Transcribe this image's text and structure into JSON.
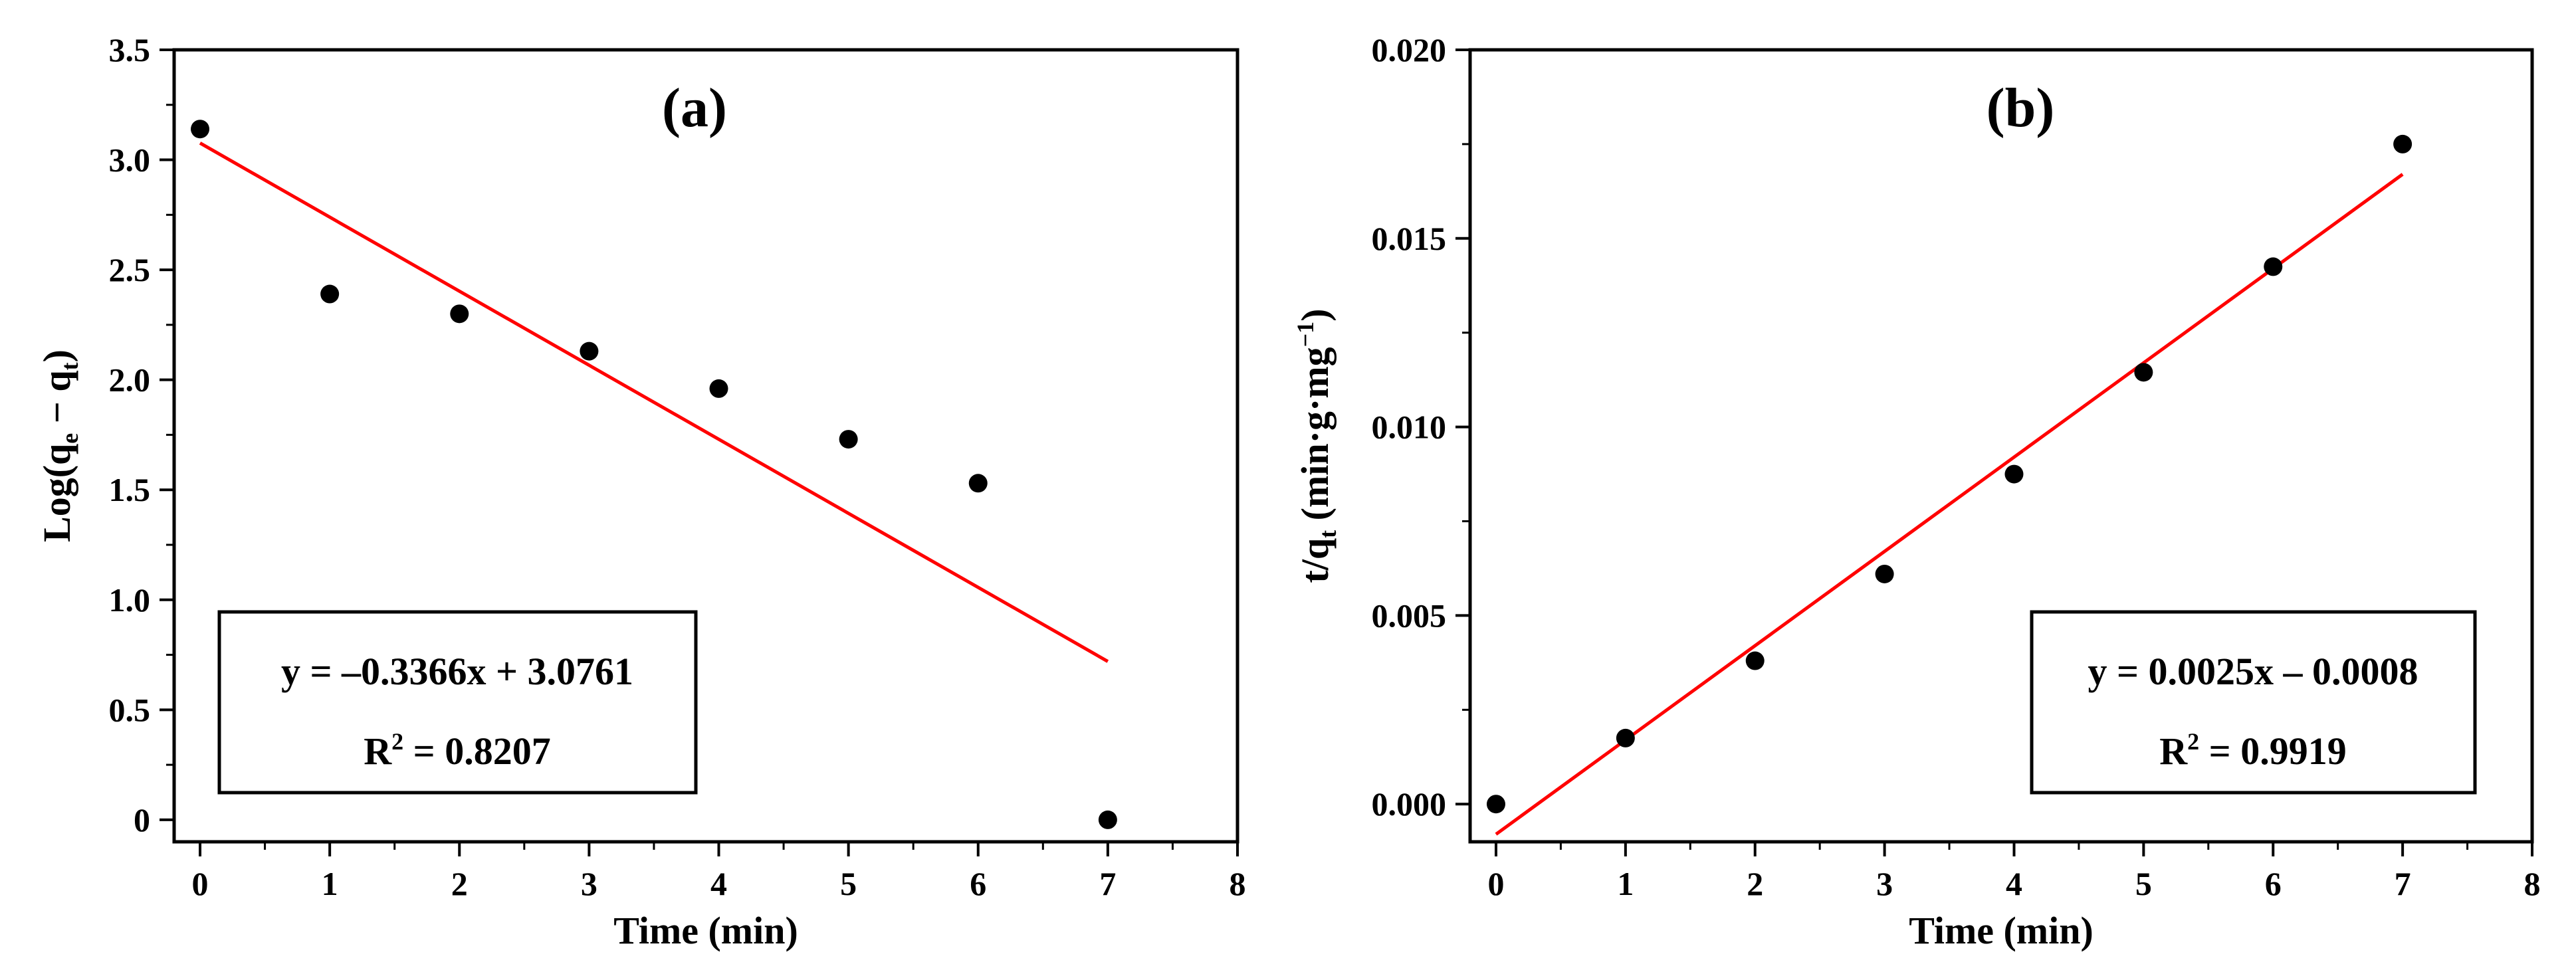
{
  "chart_data": [
    {
      "type": "scatter",
      "panel_label": "(a)",
      "xlabel": "Time (min)",
      "ylabel": {
        "prefix": "Log(q",
        "sub1": "e",
        "mid": " − q",
        "sub2": "t",
        "suffix": ")"
      },
      "xlim": [
        -0.2,
        8
      ],
      "ylim": [
        -0.1,
        3.5
      ],
      "xticks": [
        0,
        1,
        2,
        3,
        4,
        5,
        6,
        7,
        8
      ],
      "xtick_labels": [
        "0",
        "1",
        "2",
        "3",
        "4",
        "5",
        "6",
        "7",
        "8"
      ],
      "yticks": [
        0,
        0.5,
        1.0,
        1.5,
        2.0,
        2.5,
        3.0,
        3.5
      ],
      "ytick_labels": [
        "0",
        "0.5",
        "1.0",
        "1.5",
        "2.0",
        "2.5",
        "3.0",
        "3.5"
      ],
      "grid": false,
      "points": {
        "x": [
          0,
          1,
          2,
          3,
          4,
          5,
          6,
          7
        ],
        "y": [
          3.14,
          2.39,
          2.3,
          2.13,
          1.96,
          1.73,
          1.53,
          0.0
        ],
        "color": "#000000"
      },
      "fit": {
        "slope": -0.3366,
        "intercept": 3.0761,
        "x_range": [
          0,
          7
        ],
        "color": "#ff0000"
      },
      "equation": "y = –0.3366x + 3.0761",
      "r2": {
        "prefix": "R",
        "sup": "2",
        "suffix": " = 0.8207"
      },
      "annotation_box": "lower-left"
    },
    {
      "type": "scatter",
      "panel_label": "(b)",
      "xlabel": "Time (min)",
      "ylabel": {
        "prefix": "t/q",
        "sub1": "t",
        "mid": " (min·g·mg",
        "sup": "−1",
        "suffix": ")"
      },
      "xlim": [
        -0.2,
        8
      ],
      "ylim": [
        -0.001,
        0.02
      ],
      "xticks": [
        0,
        1,
        2,
        3,
        4,
        5,
        6,
        7,
        8
      ],
      "xtick_labels": [
        "0",
        "1",
        "2",
        "3",
        "4",
        "5",
        "6",
        "7",
        "8"
      ],
      "yticks": [
        0,
        0.005,
        0.01,
        0.015,
        0.02
      ],
      "ytick_labels": [
        "0.000",
        "0.005",
        "0.010",
        "0.015",
        "0.020"
      ],
      "grid": false,
      "points": {
        "x": [
          0,
          1,
          2,
          3,
          4,
          5,
          6,
          7
        ],
        "y": [
          0.0,
          0.00175,
          0.0038,
          0.0061,
          0.00875,
          0.01145,
          0.01425,
          0.0175
        ],
        "color": "#000000"
      },
      "fit": {
        "slope": 0.0025,
        "intercept": -0.0008,
        "x_range": [
          0,
          7
        ],
        "color": "#ff0000"
      },
      "equation": "y = 0.0025x – 0.0008",
      "r2": {
        "prefix": "R",
        "sup": "2",
        "suffix": " = 0.9919"
      },
      "annotation_box": "lower-right"
    }
  ]
}
